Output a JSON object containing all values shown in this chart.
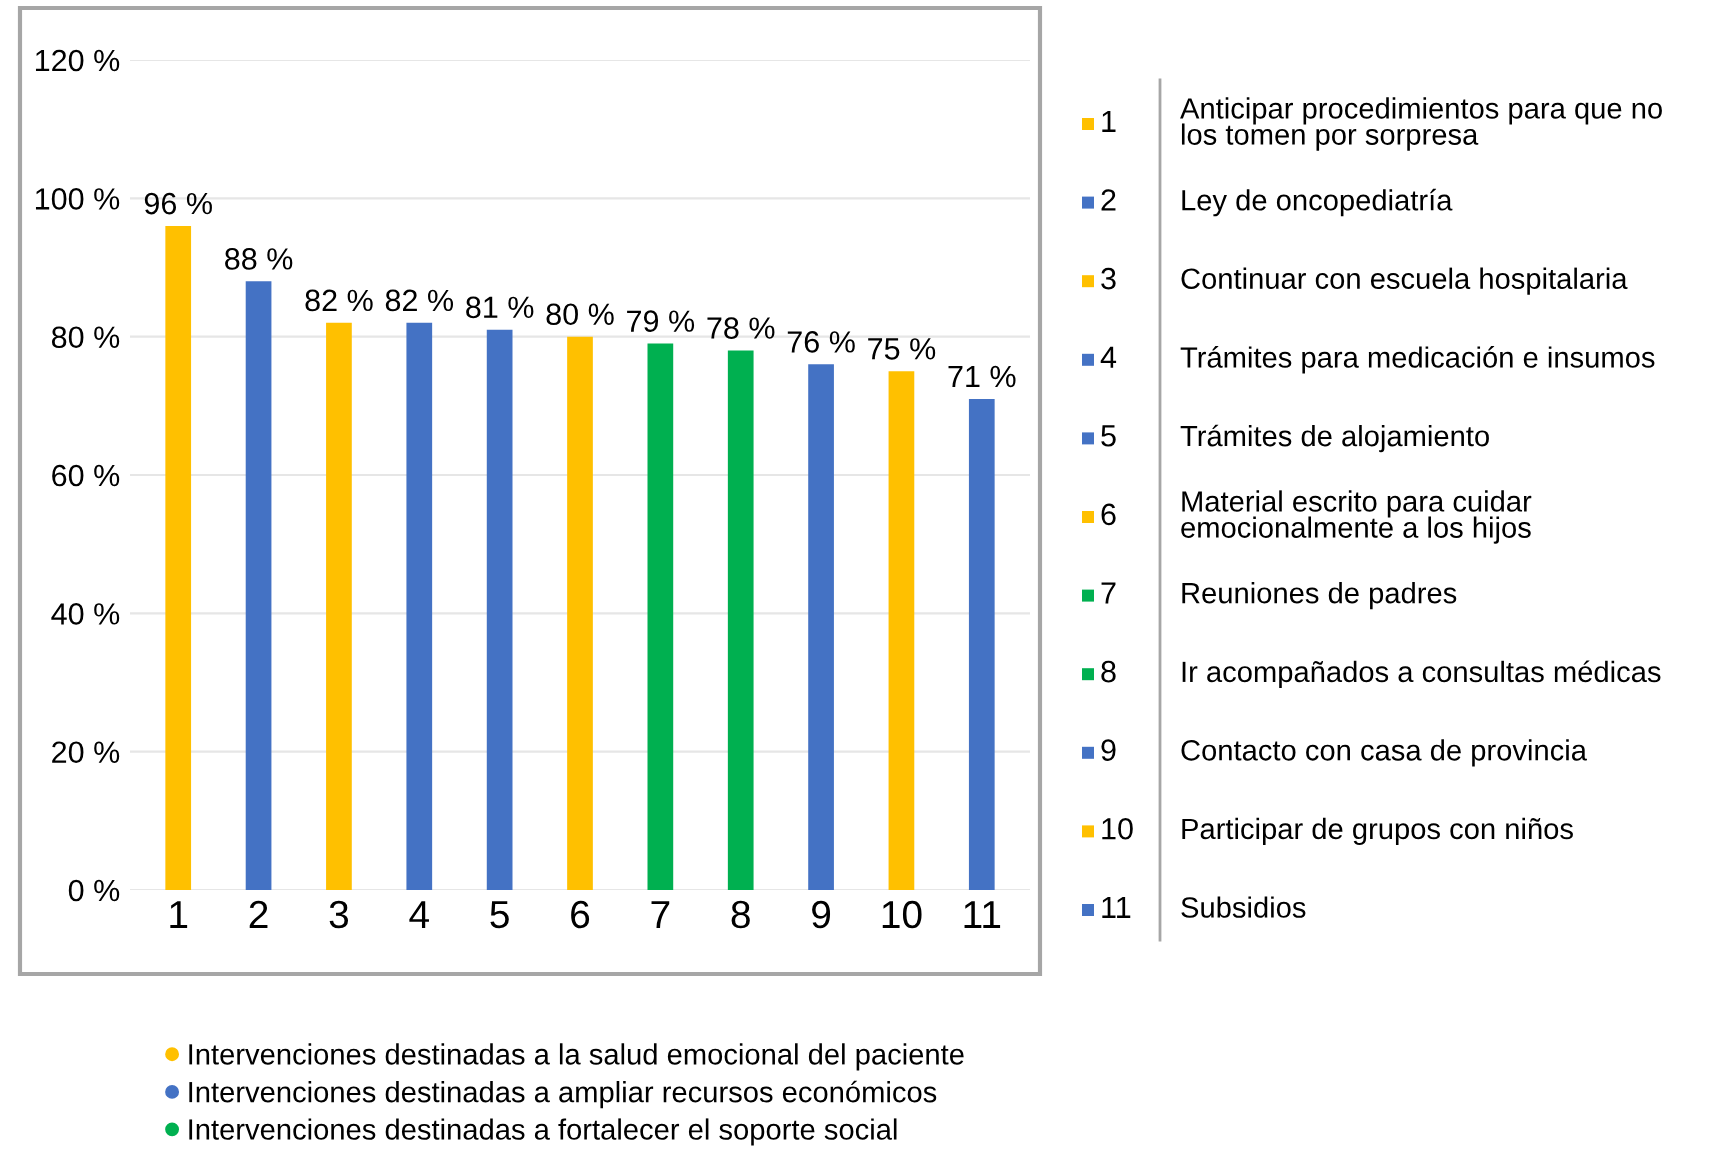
{
  "chart_data": {
    "type": "bar",
    "categories": [
      "1",
      "2",
      "3",
      "4",
      "5",
      "6",
      "7",
      "8",
      "9",
      "10",
      "11"
    ],
    "series": [
      {
        "name": "Intervenciones destinadas a la salud emocional del paciente",
        "color": "#ffc000",
        "values": [
          96,
          null,
          82,
          null,
          null,
          80,
          null,
          null,
          null,
          75,
          null
        ],
        "value_labels": [
          "96 %",
          null,
          "82 %",
          null,
          null,
          "80 %",
          null,
          null,
          null,
          "75 %",
          null
        ]
      },
      {
        "name": "Intervenciones destinadas a ampliar recursos económicos",
        "color": "#4472c4",
        "values": [
          null,
          88,
          null,
          82,
          81,
          null,
          null,
          null,
          76,
          null,
          71
        ],
        "value_labels": [
          null,
          "88 %",
          null,
          "82 %",
          "81 %",
          null,
          null,
          null,
          "76 %",
          null,
          "71 %"
        ]
      },
      {
        "name": "Intervenciones destinadas a fortalecer el soporte social",
        "color": "#00b050",
        "values": [
          null,
          null,
          null,
          null,
          null,
          null,
          79,
          78,
          null,
          null,
          null
        ],
        "value_labels": [
          null,
          null,
          null,
          null,
          null,
          null,
          "79 %",
          "78 %",
          null,
          null,
          null
        ]
      }
    ],
    "ylim": [
      0,
      120
    ],
    "yticks": [
      {
        "value": 0,
        "label": "0 %"
      },
      {
        "value": 20,
        "label": "20 %"
      },
      {
        "value": 40,
        "label": "40 %"
      },
      {
        "value": 60,
        "label": "60 %"
      },
      {
        "value": 80,
        "label": "80 %"
      },
      {
        "value": 100,
        "label": "100 %"
      },
      {
        "value": 120,
        "label": "120 %"
      }
    ],
    "grid": "y",
    "legend": "bottom",
    "annotations": [
      "Anticipar procedimientos para que no\nlos tomen por sorpresa",
      "Ley de oncopediatría",
      "Continuar con escuela hospitalaria",
      "Trámites para medicación e insumos",
      "Trámites de alojamiento",
      "Material escrito para cuidar\nemocionalmente a los hijos",
      "Reuniones de padres",
      "Ir acompañados a consultas médicas",
      "Contacto con casa de provincia",
      "Participar de grupos con niños",
      "Subsidios"
    ]
  }
}
